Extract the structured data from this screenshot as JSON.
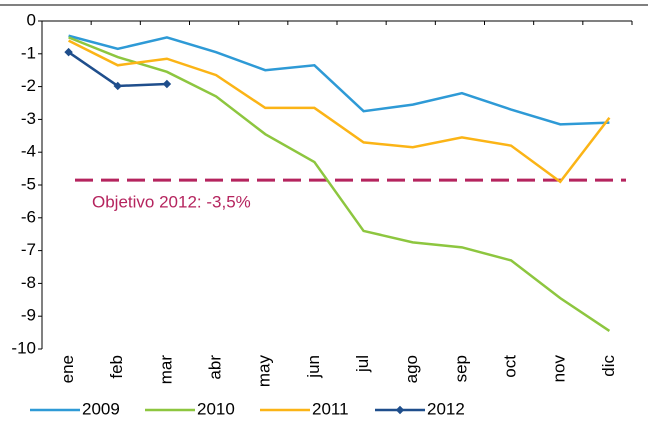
{
  "chart_data": {
    "type": "line",
    "categories": [
      "ene",
      "feb",
      "mar",
      "abr",
      "may",
      "jun",
      "jul",
      "ago",
      "sep",
      "oct",
      "nov",
      "dic"
    ],
    "series": [
      {
        "name": "2009",
        "color": "#2e9ad6",
        "values": [
          -0.45,
          -0.85,
          -0.5,
          -0.95,
          -1.5,
          -1.35,
          -2.75,
          -2.55,
          -2.2,
          -2.7,
          -3.15,
          -3.1
        ]
      },
      {
        "name": "2010",
        "color": "#8dc63f",
        "values": [
          -0.5,
          -1.1,
          -1.55,
          -2.3,
          -3.45,
          -4.3,
          -6.4,
          -6.75,
          -6.9,
          -7.3,
          -8.45,
          -9.45
        ]
      },
      {
        "name": "2011",
        "color": "#fbb416",
        "values": [
          -0.6,
          -1.35,
          -1.15,
          -1.65,
          -2.65,
          -2.65,
          -3.7,
          -3.85,
          -3.55,
          -3.8,
          -4.9,
          -2.95
        ]
      },
      {
        "name": "2012",
        "color": "#1f4e8c",
        "marker": true,
        "values": [
          -0.95,
          -1.98,
          -1.92,
          null,
          null,
          null,
          null,
          null,
          null,
          null,
          null,
          null
        ]
      }
    ],
    "reference_line": {
      "value": -4.85,
      "label": "Objetivo 2012: -3,5%",
      "color": "#b5245e"
    },
    "ylim": [
      -10,
      0
    ],
    "yticks": [
      0,
      -1,
      -2,
      -3,
      -4,
      -5,
      -6,
      -7,
      -8,
      -9,
      -10
    ]
  }
}
